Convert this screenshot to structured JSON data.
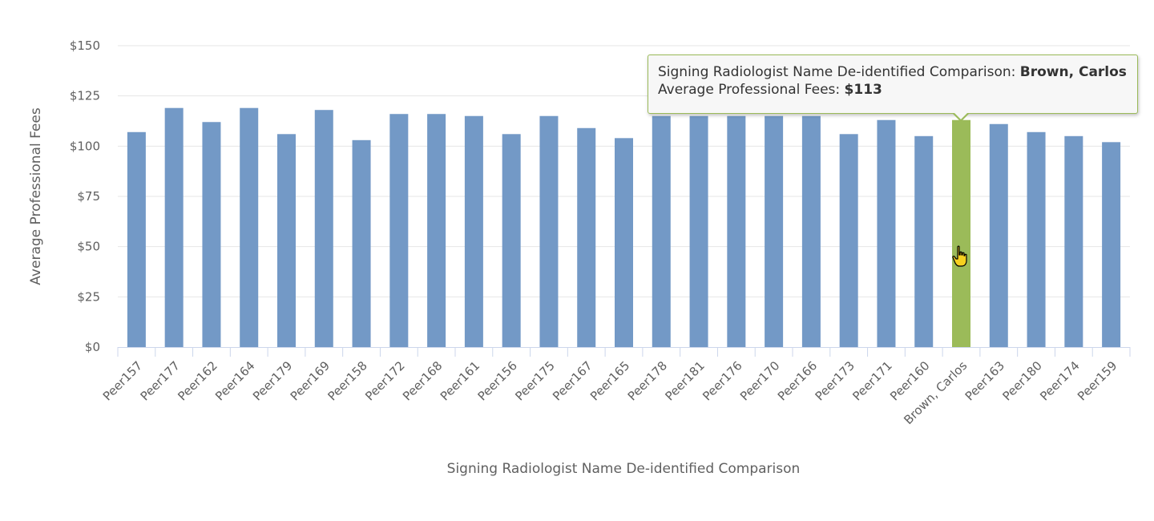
{
  "chart_data": {
    "type": "bar",
    "xlabel": "Signing Radiologist Name De-identified Comparison",
    "ylabel": "Average Professional Fees",
    "ylim": [
      0,
      150
    ],
    "yticks": [
      "$0",
      "$25",
      "$50",
      "$75",
      "$100",
      "$125",
      "$150"
    ],
    "ytick_values": [
      0,
      25,
      50,
      75,
      100,
      125,
      150
    ],
    "grid": true,
    "categories": [
      "Peer157",
      "Peer177",
      "Peer162",
      "Peer164",
      "Peer179",
      "Peer169",
      "Peer158",
      "Peer172",
      "Peer168",
      "Peer161",
      "Peer156",
      "Peer175",
      "Peer167",
      "Peer165",
      "Peer178",
      "Peer181",
      "Peer176",
      "Peer170",
      "Peer166",
      "Peer173",
      "Peer171",
      "Peer160",
      "Brown, Carlos",
      "Peer163",
      "Peer180",
      "Peer174",
      "Peer159"
    ],
    "values": [
      107,
      119,
      112,
      119,
      106,
      118,
      103,
      116,
      116,
      115,
      106,
      115,
      109,
      104,
      115,
      115,
      115,
      115,
      115,
      106,
      113,
      105,
      113,
      111,
      107,
      105,
      102
    ],
    "highlight_index": 22,
    "colors": {
      "bar": "#7399c6",
      "highlight": "#9bbb59"
    }
  },
  "tooltip": {
    "line1_label": "Signing Radiologist Name De-identified Comparison: ",
    "line1_value": "Brown, Carlos",
    "line2_label": "Average Professional Fees: ",
    "line2_value": "$113"
  },
  "cursor_icon": "hand-pointer-icon"
}
